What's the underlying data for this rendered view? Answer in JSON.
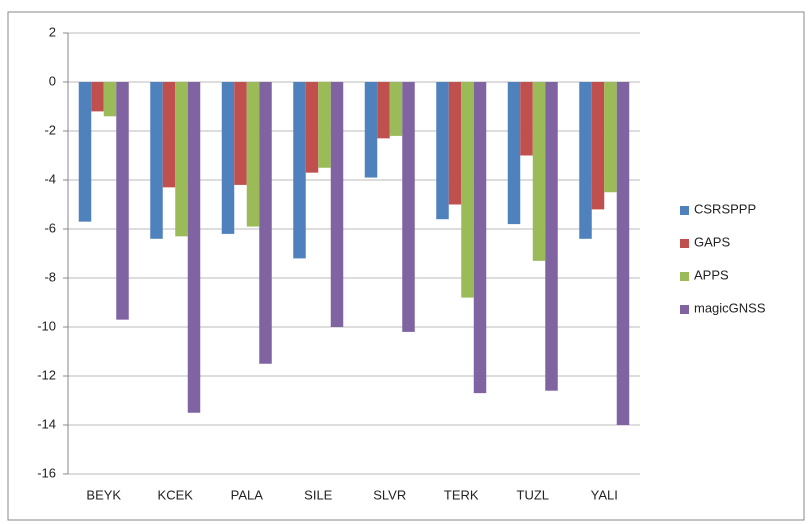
{
  "chart_data": {
    "type": "bar",
    "categories": [
      "BEYK",
      "KCEK",
      "PALA",
      "SILE",
      "SLVR",
      "TERK",
      "TUZL",
      "YALI"
    ],
    "series": [
      {
        "name": "CSRSPPP",
        "color": "#4f81bd",
        "values": [
          -5.7,
          -6.4,
          -6.2,
          -7.2,
          -3.9,
          -5.6,
          -5.8,
          -6.4
        ]
      },
      {
        "name": "GAPS",
        "color": "#c0504d",
        "values": [
          -1.2,
          -4.3,
          -4.2,
          -3.7,
          -2.3,
          -5.0,
          -3.0,
          -5.2
        ]
      },
      {
        "name": "APPS",
        "color": "#9bbb59",
        "values": [
          -1.4,
          -6.3,
          -5.9,
          -3.5,
          -2.2,
          -8.8,
          -7.3,
          -4.5
        ]
      },
      {
        "name": "magicGNSS",
        "color": "#8064a2",
        "values": [
          -9.7,
          -13.5,
          -11.5,
          -10.0,
          -10.2,
          -12.7,
          -12.6,
          -14.0
        ]
      }
    ],
    "ylim": [
      -16,
      2
    ],
    "yticks": [
      -16,
      -14,
      -12,
      -10,
      -8,
      -6,
      -4,
      -2,
      0,
      2
    ],
    "grid": true,
    "legend": "right"
  }
}
